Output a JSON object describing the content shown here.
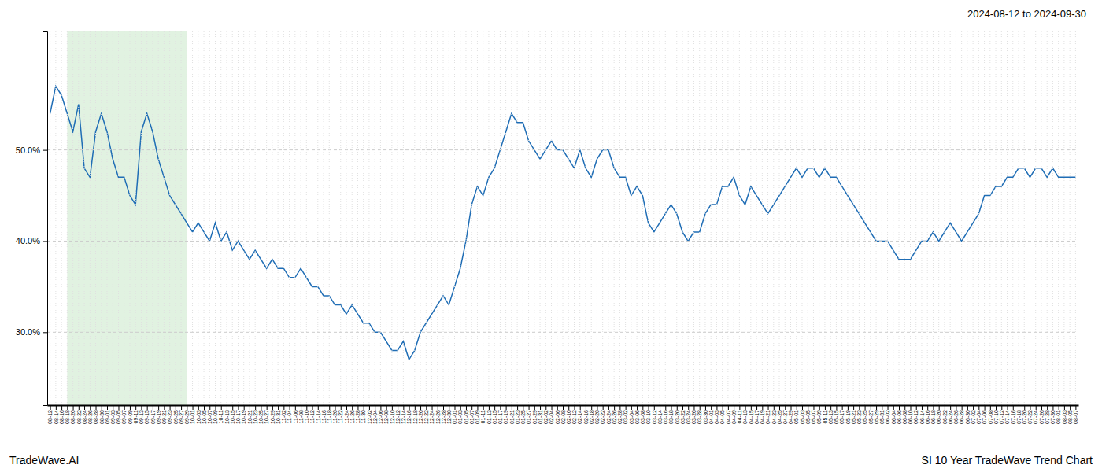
{
  "chart_data": {
    "type": "line",
    "title": "2024-08-12 to 2024-09-30",
    "annotations": [
      "TradeWave.AI",
      "SI 10 Year TradeWave Trend Chart"
    ],
    "color": "#1f6db5",
    "span": {
      "from": "08-18",
      "to": "09-29",
      "color": "#d4ecd4"
    },
    "grid": true,
    "ylim": [
      22,
      63
    ],
    "yticks": [
      {
        "value": 30.0,
        "label": "30.0%"
      },
      {
        "value": 40.0,
        "label": "40.0%"
      },
      {
        "value": 50.0,
        "label": "50.0%"
      }
    ],
    "categories": [
      "08-12",
      "08-14",
      "08-16",
      "08-18",
      "08-20",
      "08-22",
      "08-24",
      "08-26",
      "08-28",
      "08-30",
      "09-01",
      "09-03",
      "09-05",
      "09-07",
      "09-09",
      "09-11",
      "09-13",
      "09-15",
      "09-17",
      "09-19",
      "09-21",
      "09-23",
      "09-25",
      "09-27",
      "09-29",
      "10-01",
      "10-03",
      "10-05",
      "10-07",
      "10-09",
      "10-11",
      "10-13",
      "10-15",
      "10-17",
      "10-19",
      "10-21",
      "10-23",
      "10-25",
      "10-27",
      "10-29",
      "10-31",
      "11-02",
      "11-04",
      "11-06",
      "11-08",
      "11-10",
      "11-12",
      "11-14",
      "11-16",
      "11-18",
      "11-20",
      "11-22",
      "11-24",
      "11-26",
      "11-28",
      "11-30",
      "12-02",
      "12-04",
      "12-06",
      "12-08",
      "12-10",
      "12-12",
      "12-14",
      "12-16",
      "12-18",
      "12-20",
      "12-22",
      "12-24",
      "12-26",
      "12-28",
      "12-30",
      "01-01",
      "01-03",
      "01-05",
      "01-07",
      "01-09",
      "01-11",
      "01-13",
      "01-15",
      "01-17",
      "01-19",
      "01-21",
      "01-23",
      "01-25",
      "01-27",
      "01-29",
      "01-31",
      "02-02",
      "02-04",
      "02-06",
      "02-08",
      "02-10",
      "02-12",
      "02-14",
      "02-16",
      "02-18",
      "02-20",
      "02-22",
      "02-24",
      "02-26",
      "02-28",
      "03-02",
      "03-04",
      "03-06",
      "03-08",
      "03-10",
      "03-12",
      "03-14",
      "03-16",
      "03-18",
      "03-20",
      "03-22",
      "03-24",
      "03-26",
      "03-28",
      "03-30",
      "04-01",
      "04-03",
      "04-05",
      "04-07",
      "04-09",
      "04-11",
      "04-13",
      "04-15",
      "04-17",
      "04-19",
      "04-21",
      "04-23",
      "04-25",
      "04-27",
      "04-29",
      "05-01",
      "05-03",
      "05-05",
      "05-07",
      "05-09",
      "05-11",
      "05-13",
      "05-15",
      "05-17",
      "05-19",
      "05-21",
      "05-23",
      "05-25",
      "05-27",
      "05-29",
      "05-31",
      "06-02",
      "06-04",
      "06-06",
      "06-08",
      "06-10",
      "06-12",
      "06-14",
      "06-16",
      "06-18",
      "06-20",
      "06-22",
      "06-24",
      "06-26",
      "06-28",
      "06-30",
      "07-02",
      "07-04",
      "07-06",
      "07-08",
      "07-10",
      "07-12",
      "07-14",
      "07-16",
      "07-18",
      "07-20",
      "07-22",
      "07-24",
      "07-26",
      "07-28",
      "07-30",
      "08-01",
      "08-03",
      "08-05",
      "08-07"
    ],
    "values": [
      54,
      57,
      56,
      54,
      52,
      55,
      48,
      47,
      52,
      54,
      52,
      49,
      47,
      47,
      45,
      44,
      52,
      54,
      52,
      49,
      47,
      45,
      44,
      43,
      42,
      41,
      42,
      41,
      40,
      42,
      40,
      41,
      39,
      40,
      39,
      38,
      39,
      38,
      37,
      38,
      37,
      37,
      36,
      36,
      37,
      36,
      35,
      35,
      34,
      34,
      33,
      33,
      32,
      33,
      32,
      31,
      31,
      30,
      30,
      29,
      28,
      28,
      29,
      27,
      28,
      30,
      31,
      32,
      33,
      34,
      33,
      35,
      37,
      40,
      44,
      46,
      45,
      47,
      48,
      50,
      52,
      54,
      53,
      53,
      51,
      50,
      49,
      50,
      51,
      50,
      50,
      49,
      48,
      50,
      48,
      47,
      49,
      50,
      50,
      48,
      47,
      47,
      45,
      46,
      45,
      42,
      41,
      42,
      43,
      44,
      43,
      41,
      40,
      41,
      41,
      43,
      44,
      44,
      46,
      46,
      47,
      45,
      44,
      46,
      45,
      44,
      43,
      44,
      45,
      46,
      47,
      48,
      47,
      48,
      48,
      47,
      48,
      47,
      47,
      46,
      45,
      44,
      43,
      42,
      41,
      40,
      40,
      40,
      39,
      38,
      38,
      38,
      39,
      40,
      40,
      41,
      40,
      41,
      42,
      41,
      40,
      41,
      42,
      43,
      45,
      45,
      46,
      46,
      47,
      47,
      48,
      48,
      47,
      48,
      48,
      47,
      48,
      47,
      47,
      47,
      47
    ]
  }
}
